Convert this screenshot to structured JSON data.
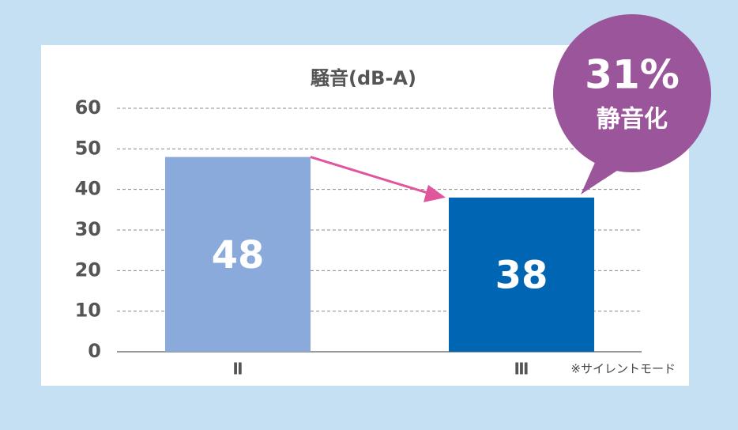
{
  "chart_data": {
    "type": "bar",
    "title": "騒音(dB-A)",
    "categories": [
      "Ⅱ",
      "Ⅲ"
    ],
    "values": [
      48,
      38
    ],
    "colors": [
      "#8aaadc",
      "#0066b3"
    ],
    "ylim": [
      0,
      60
    ],
    "yticks": [
      0,
      10,
      20,
      30,
      40,
      50,
      60
    ],
    "grid": true,
    "note": "※サイレントモード",
    "callout": {
      "value": "31%",
      "text": "静音化"
    }
  }
}
